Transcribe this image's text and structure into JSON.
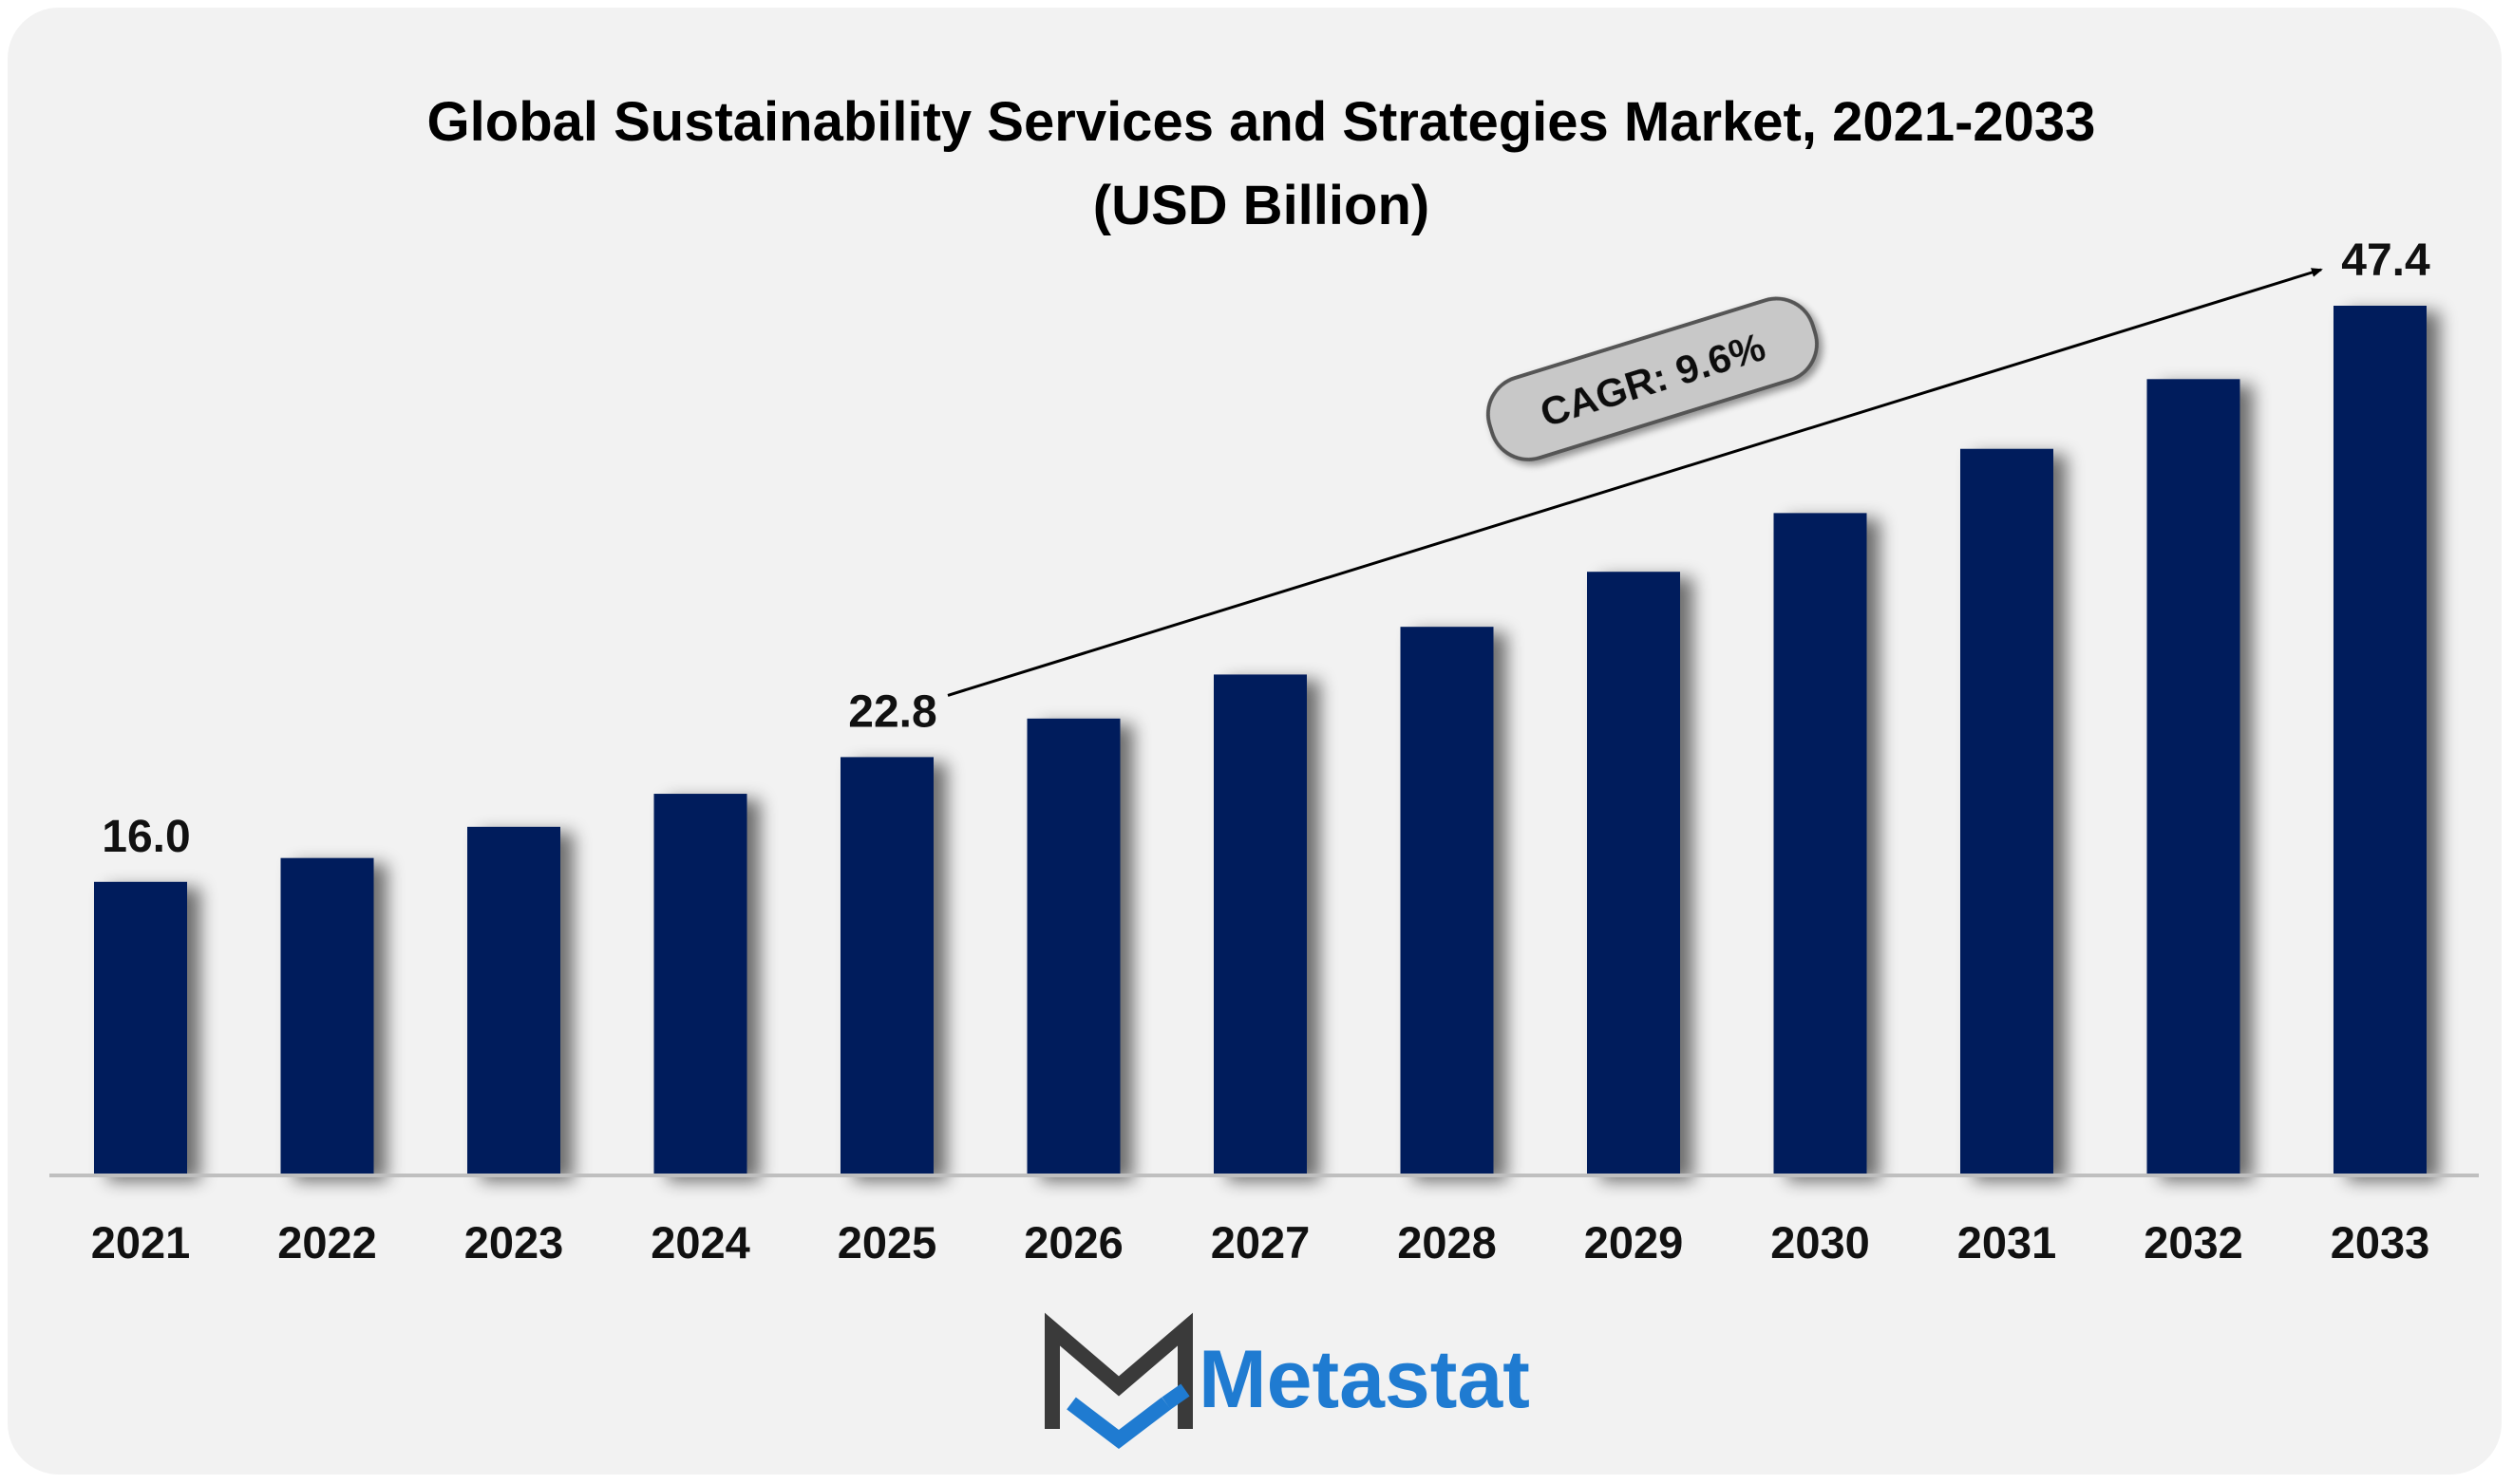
{
  "chart_data": {
    "type": "bar",
    "title": "Global Sustainability Services and Strategies Market, 2021-2033",
    "subtitle": "(USD Billion)",
    "categories": [
      "2021",
      "2022",
      "2023",
      "2024",
      "2025",
      "2026",
      "2027",
      "2028",
      "2029",
      "2030",
      "2031",
      "2032",
      "2033"
    ],
    "values": [
      16.0,
      17.3,
      19.0,
      20.8,
      22.8,
      24.9,
      27.3,
      29.9,
      32.9,
      36.1,
      39.6,
      43.4,
      47.4
    ],
    "data_labels": [
      {
        "category": "2021",
        "text": "16.0"
      },
      {
        "category": "2025",
        "text": "22.8"
      },
      {
        "category": "2033",
        "text": "47.4"
      }
    ],
    "annotation": {
      "text": "CAGR: 9.6%",
      "from": "2025",
      "to": "2033"
    },
    "ylim": [
      0,
      48
    ],
    "grid": false,
    "legend": "none",
    "colors": {
      "bar": "#021f5c",
      "axis": "#bfbfbf",
      "background": "#f2f2f2",
      "callout": "#c8c8c8"
    }
  },
  "logo": {
    "text": "Metastat",
    "colors": {
      "text": "#1f7bd1",
      "mark_dark": "#3a3a3a",
      "mark_blue": "#1f7bd1"
    }
  }
}
